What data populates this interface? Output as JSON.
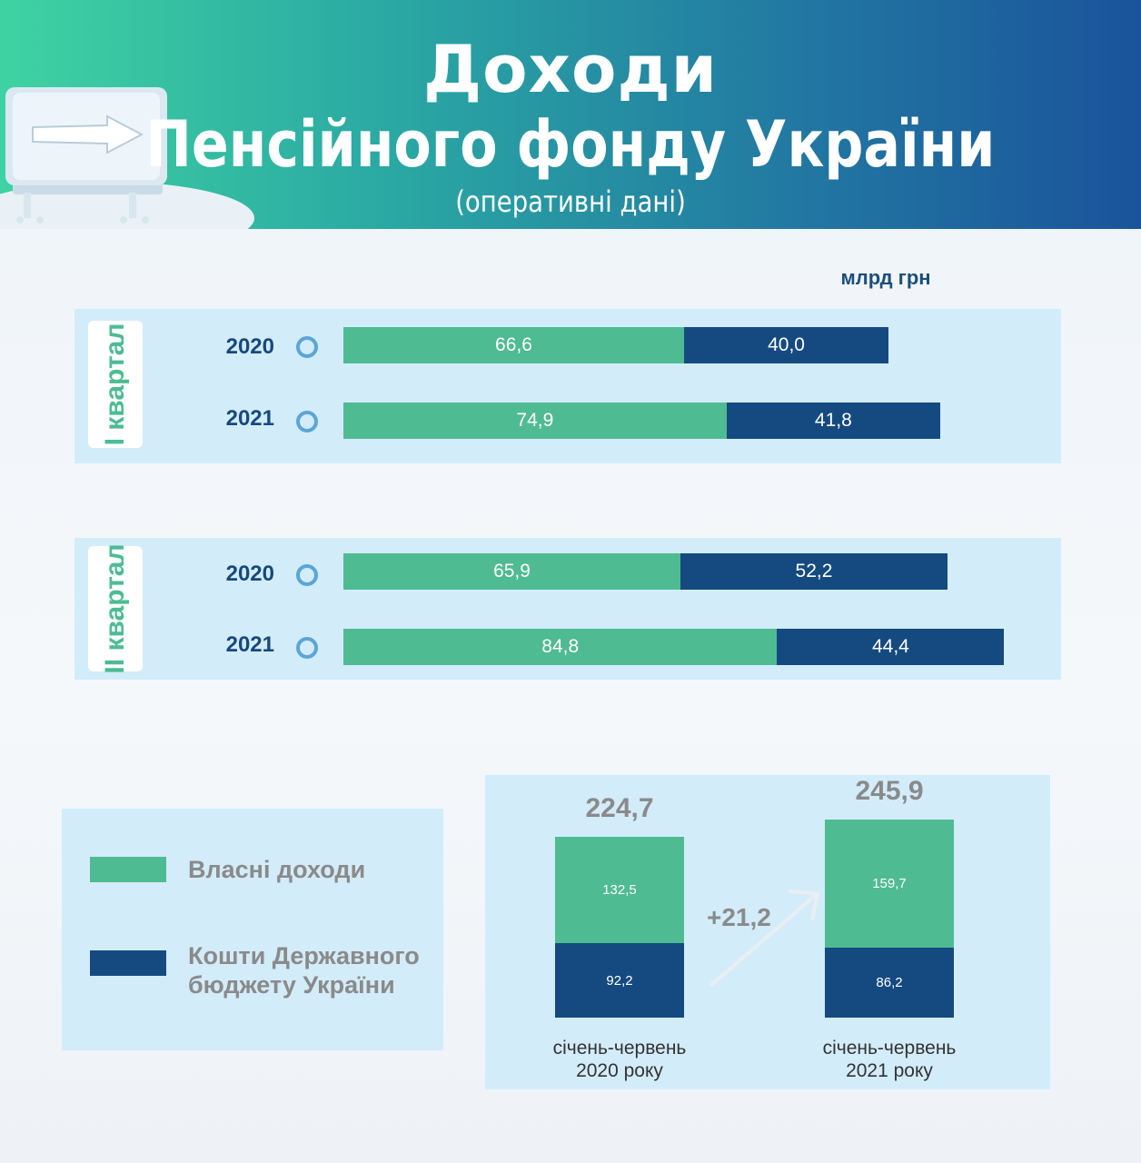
{
  "header": {
    "title_line1": "Доходи",
    "title_line2": "Пенсійного фонду України",
    "subtitle": "(оперативні дані)"
  },
  "unit": "млрд грн",
  "colors": {
    "own": "#4fbb92",
    "state": "#154a81"
  },
  "chart_data": [
    {
      "type": "bar",
      "orientation": "horizontal",
      "stacked": true,
      "group_label": "І квартал",
      "categories": [
        "2020",
        "2021"
      ],
      "series": [
        {
          "name": "Власні доходи",
          "values": [
            66.6,
            74.9
          ],
          "labels": [
            "66,6",
            "74,9"
          ]
        },
        {
          "name": "Кошти Державного бюджету України",
          "values": [
            40.0,
            41.8
          ],
          "labels": [
            "40,0",
            "41,8"
          ]
        }
      ]
    },
    {
      "type": "bar",
      "orientation": "horizontal",
      "stacked": true,
      "group_label": "ІІ квартал",
      "categories": [
        "2020",
        "2021"
      ],
      "series": [
        {
          "name": "Власні доходи",
          "values": [
            65.9,
            84.8
          ],
          "labels": [
            "65,9",
            "84,8"
          ]
        },
        {
          "name": "Кошти Державного бюджету України",
          "values": [
            52.2,
            44.4
          ],
          "labels": [
            "52,2",
            "44,4"
          ]
        }
      ]
    },
    {
      "type": "bar",
      "orientation": "vertical",
      "stacked": true,
      "categories": [
        "січень-червень 2020 року",
        "січень-червень 2021 року"
      ],
      "category_lines": [
        [
          "січень-червень",
          "2020 року"
        ],
        [
          "січень-червень",
          "2021 року"
        ]
      ],
      "totals": [
        224.7,
        245.9
      ],
      "total_labels": [
        "224,7",
        "245,9"
      ],
      "delta_label": "+21,2",
      "series": [
        {
          "name": "Власні доходи",
          "values": [
            132.5,
            159.7
          ],
          "labels": [
            "132,5",
            "159,7"
          ]
        },
        {
          "name": "Кошти Державного бюджету України",
          "values": [
            92.2,
            86.2
          ],
          "labels": [
            "92,2",
            "86,2"
          ]
        }
      ]
    }
  ],
  "legend": [
    {
      "label_lines": [
        "Власні доходи"
      ],
      "color": "#4fbb92"
    },
    {
      "label_lines": [
        "Кошти Державного",
        "бюджету України"
      ],
      "color": "#154a81"
    }
  ]
}
